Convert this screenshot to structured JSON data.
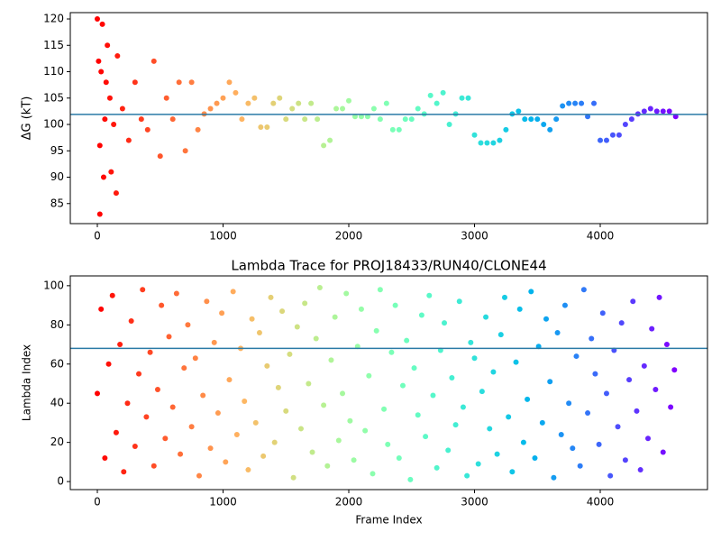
{
  "chart_data": [
    {
      "type": "scatter",
      "colormap": "rainbow_r",
      "ylabel": "ΔG (kT)",
      "x": [
        0,
        10,
        20,
        20,
        30,
        40,
        50,
        60,
        70,
        80,
        100,
        110,
        130,
        150,
        160,
        200,
        250,
        300,
        350,
        400,
        450,
        500,
        550,
        600,
        650,
        700,
        750,
        800,
        850,
        900,
        950,
        1000,
        1050,
        1100,
        1150,
        1200,
        1250,
        1300,
        1350,
        1400,
        1450,
        1500,
        1550,
        1600,
        1650,
        1700,
        1750,
        1800,
        1850,
        1900,
        1950,
        2000,
        2050,
        2100,
        2150,
        2200,
        2250,
        2300,
        2350,
        2400,
        2450,
        2500,
        2550,
        2600,
        2650,
        2700,
        2750,
        2800,
        2850,
        2900,
        2950,
        3000,
        3050,
        3100,
        3150,
        3200,
        3250,
        3300,
        3350,
        3400,
        3450,
        3500,
        3550,
        3600,
        3650,
        3700,
        3750,
        3800,
        3850,
        3900,
        3950,
        4000,
        4050,
        4100,
        4150,
        4200,
        4250,
        4300,
        4350,
        4400,
        4450,
        4500,
        4550,
        4600
      ],
      "values": [
        120,
        112,
        96,
        83,
        110,
        119,
        90,
        101,
        108,
        115,
        105,
        91,
        100,
        87,
        113,
        103,
        97,
        108,
        101,
        99,
        112,
        94,
        105,
        101,
        108,
        95,
        108,
        99,
        102,
        103,
        104,
        105,
        108,
        106,
        101,
        104,
        105,
        99.5,
        99.5,
        104,
        105,
        101,
        103,
        104,
        101,
        104,
        101,
        96,
        97,
        103,
        103,
        104.5,
        101.5,
        101.5,
        101.5,
        103,
        101,
        104,
        99,
        99,
        101,
        101,
        103,
        102,
        105.5,
        104,
        106,
        100,
        102,
        105,
        105,
        98,
        96.5,
        96.5,
        96.5,
        97,
        99,
        102,
        102.5,
        101,
        101,
        101,
        100,
        99,
        101,
        103.5,
        104,
        104,
        104,
        101.5,
        104,
        97,
        97,
        98,
        98,
        100,
        101,
        102,
        102.5,
        103,
        102.5,
        102.5,
        102.5,
        101.5
      ],
      "hline": 101.9,
      "hline_color": "#2a7aa6",
      "xlim": [
        -215,
        4853
      ],
      "ylim": [
        81.2,
        121.2
      ],
      "xticks": [
        0,
        1000,
        2000,
        3000,
        4000
      ],
      "yticks": [
        85,
        90,
        95,
        100,
        105,
        110,
        115,
        120
      ]
    },
    {
      "type": "scatter",
      "colormap": "rainbow_r",
      "title": "Lambda Trace for PROJ18433/RUN40/CLONE44",
      "xlabel": "Frame Index",
      "ylabel": "Lambda Index",
      "x": [
        0,
        30,
        60,
        90,
        120,
        150,
        180,
        210,
        240,
        270,
        300,
        330,
        360,
        390,
        420,
        450,
        480,
        510,
        540,
        570,
        600,
        630,
        660,
        690,
        720,
        750,
        780,
        810,
        840,
        870,
        900,
        930,
        960,
        990,
        1020,
        1050,
        1080,
        1110,
        1140,
        1170,
        1200,
        1230,
        1260,
        1290,
        1320,
        1350,
        1380,
        1410,
        1440,
        1470,
        1500,
        1530,
        1560,
        1590,
        1620,
        1650,
        1680,
        1710,
        1740,
        1770,
        1800,
        1830,
        1860,
        1890,
        1920,
        1950,
        1980,
        2010,
        2040,
        2070,
        2100,
        2130,
        2160,
        2190,
        2220,
        2250,
        2280,
        2310,
        2340,
        2370,
        2400,
        2430,
        2460,
        2490,
        2520,
        2550,
        2580,
        2610,
        2640,
        2670,
        2700,
        2730,
        2760,
        2790,
        2820,
        2850,
        2880,
        2910,
        2940,
        2970,
        3000,
        3030,
        3060,
        3090,
        3120,
        3150,
        3180,
        3210,
        3240,
        3270,
        3300,
        3330,
        3360,
        3390,
        3420,
        3450,
        3480,
        3510,
        3540,
        3570,
        3600,
        3630,
        3660,
        3690,
        3720,
        3750,
        3780,
        3810,
        3840,
        3870,
        3900,
        3930,
        3960,
        3990,
        4020,
        4050,
        4080,
        4110,
        4140,
        4170,
        4200,
        4230,
        4260,
        4290,
        4320,
        4350,
        4380,
        4410,
        4440,
        4470,
        4500,
        4530,
        4560,
        4590
      ],
      "values": [
        45,
        88,
        12,
        60,
        95,
        25,
        70,
        5,
        40,
        82,
        18,
        55,
        98,
        33,
        66,
        8,
        47,
        90,
        22,
        74,
        38,
        96,
        14,
        58,
        80,
        28,
        63,
        3,
        44,
        92,
        17,
        71,
        35,
        86,
        10,
        52,
        97,
        24,
        68,
        41,
        6,
        83,
        30,
        76,
        13,
        59,
        94,
        20,
        48,
        87,
        36,
        65,
        2,
        79,
        27,
        91,
        50,
        15,
        73,
        99,
        39,
        8,
        62,
        84,
        21,
        45,
        96,
        31,
        11,
        69,
        88,
        26,
        54,
        4,
        77,
        98,
        37,
        19,
        66,
        90,
        12,
        49,
        72,
        1,
        58,
        34,
        85,
        23,
        95,
        44,
        7,
        67,
        81,
        16,
        53,
        29,
        92,
        38,
        3,
        71,
        63,
        9,
        46,
        84,
        27,
        56,
        14,
        75,
        94,
        33,
        5,
        61,
        88,
        20,
        42,
        97,
        12,
        69,
        30,
        83,
        51,
        2,
        76,
        24,
        90,
        40,
        17,
        64,
        8,
        98,
        35,
        73,
        55,
        19,
        86,
        45,
        3,
        67,
        28,
        81,
        11,
        52,
        92,
        36,
        6,
        59,
        22,
        78,
        47,
        94,
        15,
        70,
        38,
        57
      ],
      "hline": 68,
      "hline_color": "#2a7aa6",
      "xlim": [
        -215,
        4853
      ],
      "ylim": [
        -4.1,
        105
      ],
      "xticks": [
        0,
        1000,
        2000,
        3000,
        4000
      ],
      "yticks": [
        0,
        20,
        40,
        60,
        80,
        100
      ]
    }
  ]
}
